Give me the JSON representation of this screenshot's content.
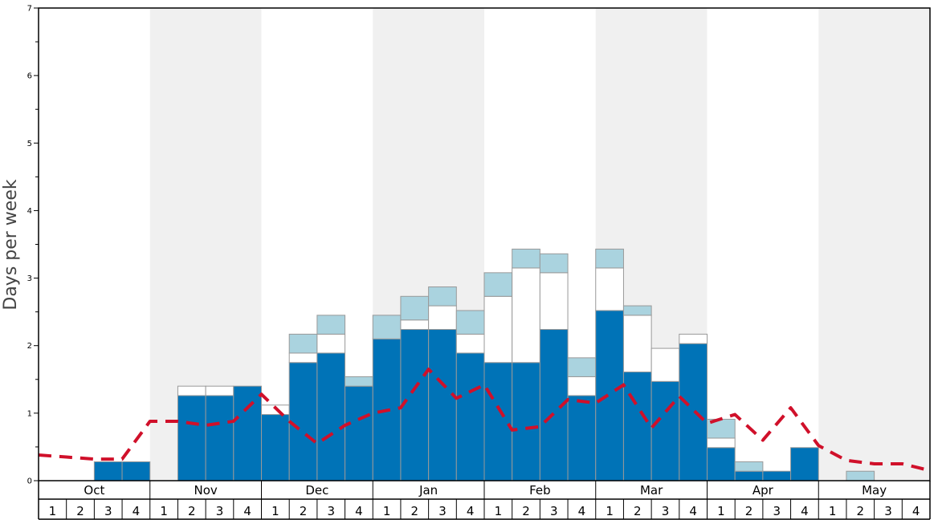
{
  "chart_data": {
    "type": "bar",
    "ylabel": "Days per week",
    "ylim": [
      0,
      7
    ],
    "yticks": [
      "0",
      "1",
      "2",
      "3",
      "4",
      "5",
      "6",
      "7"
    ],
    "months": [
      "Oct",
      "Nov",
      "Dec",
      "Jan",
      "Feb",
      "Mar",
      "Apr",
      "May"
    ],
    "weeks": [
      "1",
      "2",
      "3",
      "4"
    ],
    "stacked": true,
    "series": [
      {
        "key": "base",
        "color": "#0073b7",
        "values": [
          0,
          0,
          0.28,
          0.28,
          0,
          1.26,
          1.26,
          1.4,
          0.98,
          1.75,
          1.89,
          1.4,
          2.1,
          2.24,
          2.24,
          1.89,
          1.75,
          1.75,
          2.24,
          1.26,
          2.52,
          1.61,
          1.47,
          2.03,
          0.49,
          0.14,
          0.14,
          0.49,
          0,
          0,
          0,
          0
        ]
      },
      {
        "key": "middle",
        "color": "#ffffff",
        "values": [
          0,
          0,
          0,
          0,
          0,
          0.14,
          0.14,
          0,
          0.14,
          0.14,
          0.28,
          0,
          0,
          0.14,
          0.35,
          0.28,
          0.98,
          1.4,
          0.84,
          0.28,
          0.63,
          0.84,
          0.49,
          0.14,
          0.14,
          0,
          0,
          0,
          0,
          0,
          0,
          0
        ]
      },
      {
        "key": "top",
        "color": "#aad3df",
        "values": [
          0,
          0,
          0,
          0,
          0,
          0,
          0,
          0,
          0,
          0.28,
          0.28,
          0.14,
          0.35,
          0.35,
          0.28,
          0.35,
          0.35,
          0.28,
          0.28,
          0.28,
          0.28,
          0.14,
          0,
          0,
          0.28,
          0.14,
          0,
          0,
          0,
          0.14,
          0,
          0
        ]
      }
    ],
    "average": {
      "color": "#d0102a",
      "values": [
        0.38,
        0.35,
        0.32,
        0.32,
        0.88,
        0.88,
        0.82,
        0.88,
        1.28,
        0.88,
        0.55,
        0.82,
        1.0,
        1.08,
        1.65,
        1.22,
        1.42,
        0.75,
        0.8,
        1.2,
        1.15,
        1.42,
        0.78,
        1.25,
        0.85,
        0.98,
        0.6,
        1.08,
        0.52,
        0.3,
        0.25,
        0.25,
        0.15
      ]
    },
    "colors": {
      "shade": "#f0f0f0",
      "frame": "#000000",
      "bar_outline": "#999999"
    }
  }
}
